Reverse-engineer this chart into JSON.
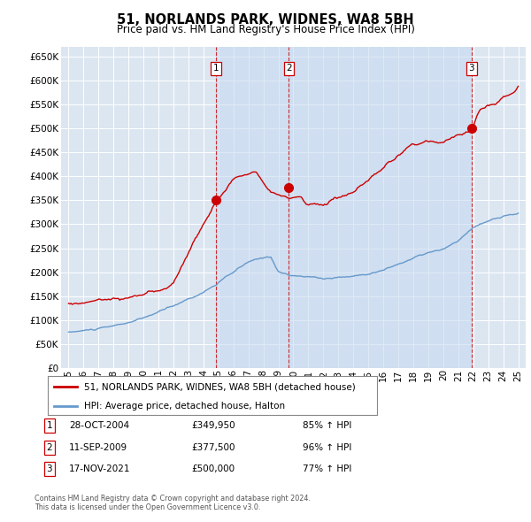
{
  "title": "51, NORLANDS PARK, WIDNES, WA8 5BH",
  "subtitle": "Price paid vs. HM Land Registry's House Price Index (HPI)",
  "legend_line1": "51, NORLANDS PARK, WIDNES, WA8 5BH (detached house)",
  "legend_line2": "HPI: Average price, detached house, Halton",
  "footnote1": "Contains HM Land Registry data © Crown copyright and database right 2024.",
  "footnote2": "This data is licensed under the Open Government Licence v3.0.",
  "transactions": [
    {
      "num": 1,
      "date": "28-OCT-2004",
      "price": "£349,950",
      "pct": "85% ↑ HPI",
      "x_year": 2004.83
    },
    {
      "num": 2,
      "date": "11-SEP-2009",
      "price": "£377,500",
      "pct": "96% ↑ HPI",
      "x_year": 2009.7
    },
    {
      "num": 3,
      "date": "17-NOV-2021",
      "price": "£500,000",
      "pct": "77% ↑ HPI",
      "x_year": 2021.88
    }
  ],
  "transaction_values": [
    349950,
    377500,
    500000
  ],
  "ylim": [
    0,
    670000
  ],
  "yticks": [
    0,
    50000,
    100000,
    150000,
    200000,
    250000,
    300000,
    350000,
    400000,
    450000,
    500000,
    550000,
    600000,
    650000
  ],
  "xlim_start": 1994.5,
  "xlim_end": 2025.5,
  "xtick_years": [
    1995,
    1996,
    1997,
    1998,
    1999,
    2000,
    2001,
    2002,
    2003,
    2004,
    2005,
    2006,
    2007,
    2008,
    2009,
    2010,
    2011,
    2012,
    2013,
    2014,
    2015,
    2016,
    2017,
    2018,
    2019,
    2020,
    2021,
    2022,
    2023,
    2024,
    2025
  ],
  "xtick_labels": [
    "95",
    "96",
    "97",
    "98",
    "99",
    "00",
    "01",
    "02",
    "03",
    "04",
    "05",
    "06",
    "07",
    "08",
    "09",
    "10",
    "11",
    "12",
    "13",
    "14",
    "15",
    "16",
    "17",
    "18",
    "19",
    "20",
    "21",
    "22",
    "23",
    "24",
    "25"
  ],
  "red_color": "#cc0000",
  "blue_color": "#6699cc",
  "bg_color": "#dce6f1",
  "shade_color": "#c5d8f0",
  "grid_color": "#ffffff",
  "label_num_box_color": "#cc0000"
}
